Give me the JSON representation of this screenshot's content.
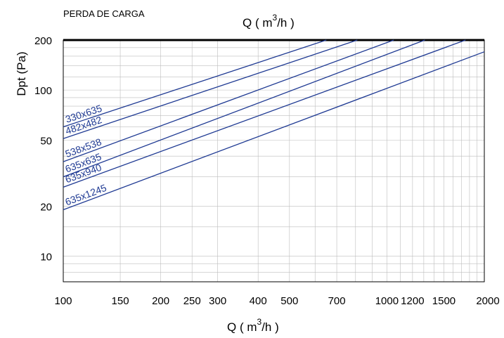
{
  "chart_data": {
    "type": "line",
    "title": "PERDA DE CARGA",
    "top_axis_label": {
      "prefix": "Q ( m",
      "sup": "3",
      "suffix": "/h )"
    },
    "xlabel": {
      "prefix": "Q ( m",
      "sup": "3",
      "suffix": "/h )"
    },
    "ylabel": "Dpt (Pa)",
    "x_scale": "log",
    "y_scale": "log",
    "xlim": [
      100,
      2000
    ],
    "ylim": [
      7,
      200
    ],
    "x_ticks": [
      100,
      150,
      200,
      250,
      300,
      400,
      500,
      700,
      1000,
      1200,
      1500,
      2000
    ],
    "x_tick_labels": [
      "100",
      "150",
      "200",
      "250",
      "300",
      "400",
      "500",
      "700",
      "1000",
      "1200",
      "1500",
      "2000"
    ],
    "y_ticks": [
      10,
      20,
      50,
      100,
      200
    ],
    "y_tick_labels": [
      "10",
      "20",
      "50",
      "100",
      "200"
    ],
    "grid": true,
    "series": [
      {
        "name": "330x635",
        "x": [
          100,
          650
        ],
        "y": [
          60,
          200
        ]
      },
      {
        "name": "482x482",
        "x": [
          100,
          810
        ],
        "y": [
          51,
          200
        ]
      },
      {
        "name": "538x538",
        "x": [
          100,
          1050
        ],
        "y": [
          37,
          200
        ]
      },
      {
        "name": "635x635",
        "x": [
          100,
          1310
        ],
        "y": [
          30,
          200
        ]
      },
      {
        "name": "635x940",
        "x": [
          100,
          1750
        ],
        "y": [
          26,
          200
        ]
      },
      {
        "name": "635x1245",
        "x": [
          100,
          2000
        ],
        "y": [
          19,
          170
        ]
      }
    ]
  }
}
